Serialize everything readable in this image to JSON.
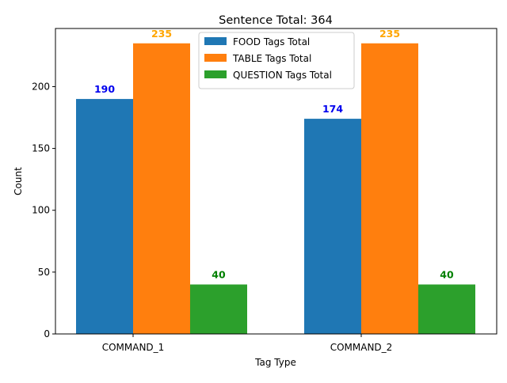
{
  "chart_data": {
    "type": "bar",
    "title": "Sentence Total: 364",
    "xlabel": "Tag Type",
    "ylabel": "Count",
    "categories": [
      "COMMAND_1",
      "COMMAND_2"
    ],
    "ylim": [
      0,
      247
    ],
    "yticks": [
      0,
      50,
      100,
      150,
      200
    ],
    "grid": false,
    "legend_position": "top-center",
    "series": [
      {
        "name": "FOOD Tags Total",
        "values": [
          190,
          174
        ],
        "color": "#1f77b4",
        "label_color": "#0000ee"
      },
      {
        "name": "TABLE Tags Total",
        "values": [
          235,
          235
        ],
        "color": "#ff7f0e",
        "label_color": "#ffa500"
      },
      {
        "name": "QUESTION Tags Total",
        "values": [
          40,
          40
        ],
        "color": "#2ca02c",
        "label_color": "#008000"
      }
    ]
  }
}
